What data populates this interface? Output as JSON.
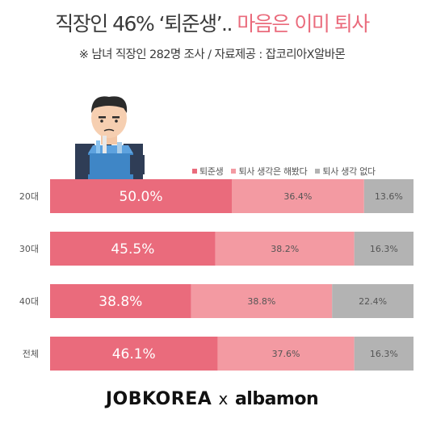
{
  "header": {
    "title_main": "직장인 46% ‘퇴준생’..",
    "title_accent": "마음은 이미 퇴사",
    "subtitle": "※ 남녀 직장인 282명 조사 / 자료제공 : 잡코리아X알바몬"
  },
  "footer": {
    "brand_left": "JOBKOREA",
    "brand_sep": "x",
    "brand_right": "albamon"
  },
  "colors": {
    "series1": "#ea6b7c",
    "series2": "#f39aa2",
    "series3": "#b3b3b3",
    "accent": "#ea6b7c"
  },
  "chart_data": {
    "type": "bar",
    "orientation": "horizontal",
    "stacked": true,
    "unit": "%",
    "categories": [
      "20대",
      "30대",
      "40대",
      "전체"
    ],
    "series": [
      {
        "name": "퇴준생",
        "values": [
          50.0,
          45.5,
          38.8,
          46.1
        ],
        "labels": [
          "50.0%",
          "45.5%",
          "38.8%",
          "46.1%"
        ]
      },
      {
        "name": "퇴사 생각은 해봤다",
        "values": [
          36.4,
          38.2,
          38.8,
          37.6
        ],
        "labels": [
          "36.4%",
          "38.2%",
          "38.8%",
          "37.6%"
        ]
      },
      {
        "name": "퇴사 생각 없다",
        "values": [
          13.6,
          16.3,
          22.4,
          16.3
        ],
        "labels": [
          "13.6%",
          "16.3%",
          "22.4%",
          "16.3%"
        ]
      }
    ],
    "xlim": [
      0,
      100
    ],
    "grid": false,
    "legend_position": "top-right"
  }
}
